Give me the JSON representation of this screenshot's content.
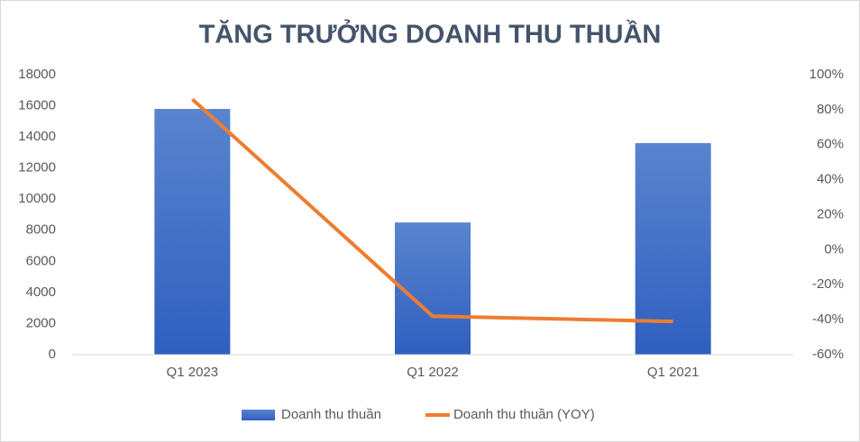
{
  "chart_data": {
    "type": "combo",
    "title": "TĂNG TRƯỞNG DOANH THU THUẦN",
    "categories": [
      "Q1 2023",
      "Q1 2022",
      "Q1 2021"
    ],
    "series": [
      {
        "name": "Doanh thu thuần",
        "type": "bar",
        "color": "#4472c4",
        "values": [
          15800,
          8500,
          13600
        ]
      },
      {
        "name": "Doanh thu thuần (YOY)",
        "type": "line",
        "color": "#ed7d31",
        "axis": "y2",
        "values": [
          86,
          -38,
          -41
        ]
      }
    ],
    "ylim": [
      0,
      18000
    ],
    "yticks": [
      0,
      2000,
      4000,
      6000,
      8000,
      10000,
      12000,
      14000,
      16000,
      18000
    ],
    "y2lim": [
      -60,
      100
    ],
    "y2ticks": [
      {
        "value": -60,
        "label": "-60%"
      },
      {
        "value": -40,
        "label": "-40%"
      },
      {
        "value": -20,
        "label": "-20%"
      },
      {
        "value": 0,
        "label": "0%"
      },
      {
        "value": 20,
        "label": "20%"
      },
      {
        "value": 40,
        "label": "40%"
      },
      {
        "value": 60,
        "label": "60%"
      },
      {
        "value": 80,
        "label": "80%"
      },
      {
        "value": 100,
        "label": "100%"
      }
    ],
    "grid": false,
    "legend": "bottom"
  }
}
